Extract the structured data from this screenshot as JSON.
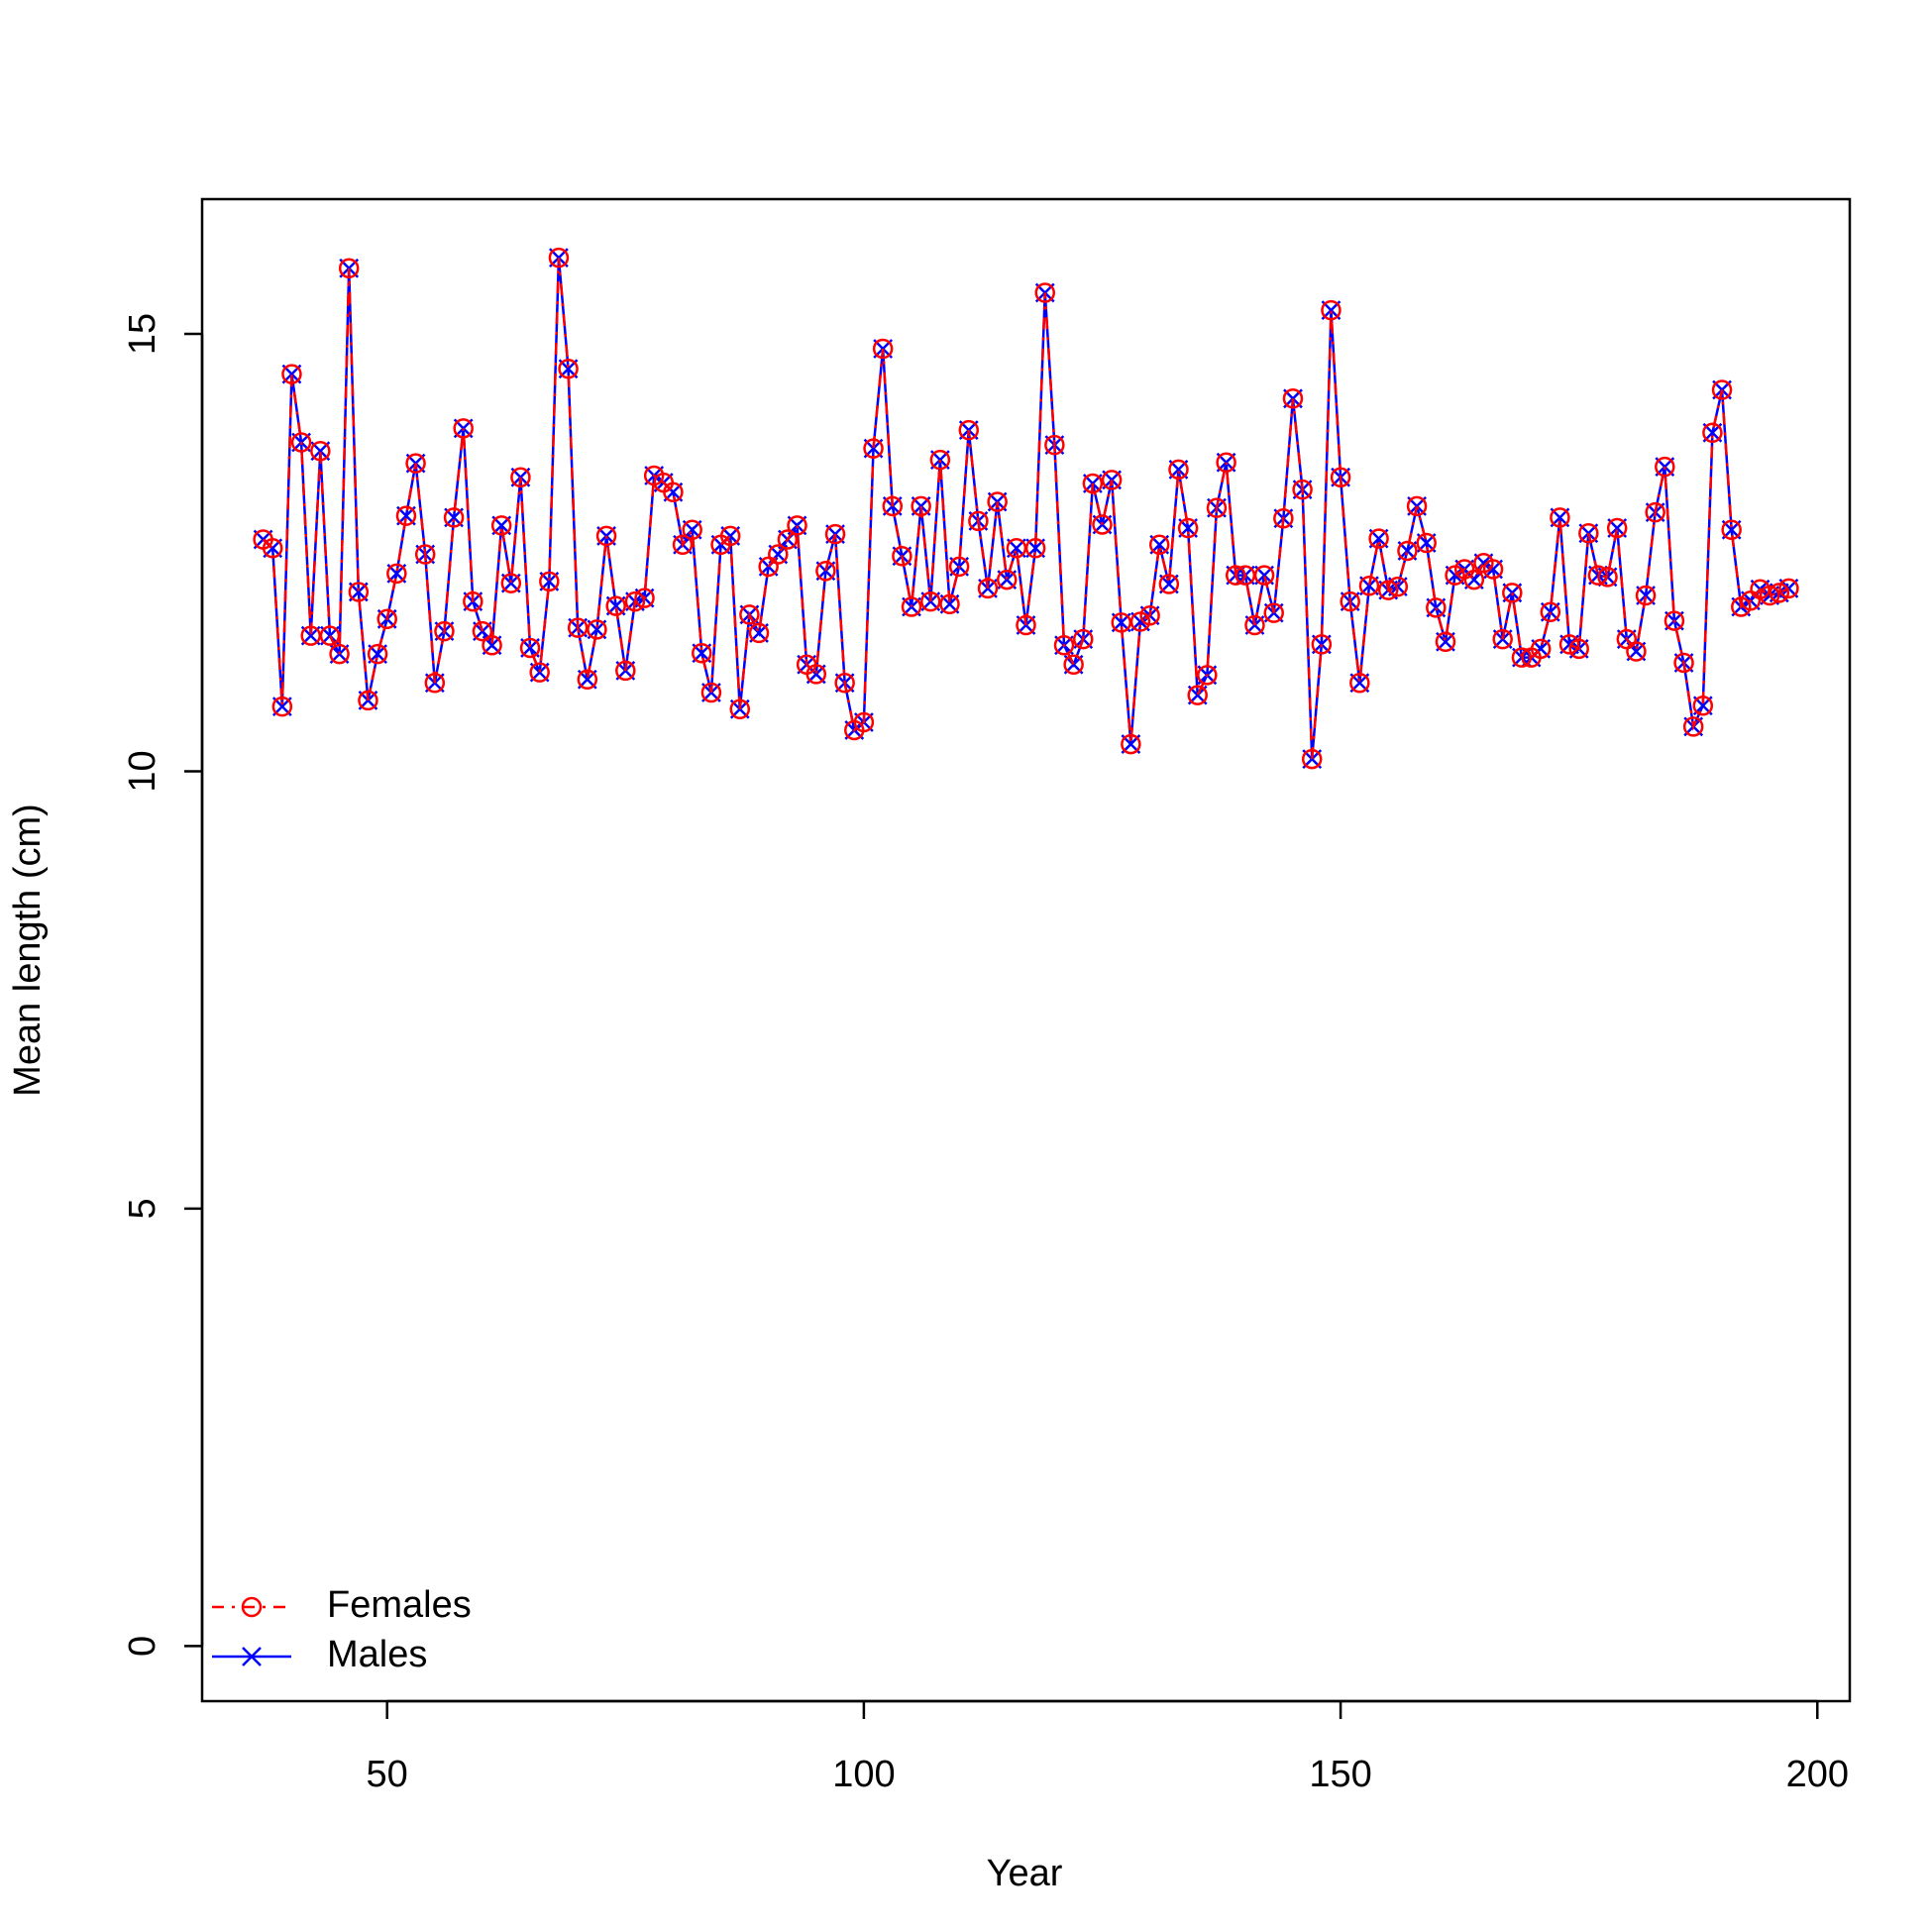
{
  "chart_data": {
    "type": "line",
    "xlabel": "Year",
    "ylabel": "Mean length (cm)",
    "x": [
      37,
      38,
      39,
      40,
      41,
      42,
      43,
      44,
      45,
      46,
      47,
      48,
      49,
      50,
      51,
      52,
      53,
      54,
      55,
      56,
      57,
      58,
      59,
      60,
      61,
      62,
      63,
      64,
      65,
      66,
      67,
      68,
      69,
      70,
      71,
      72,
      73,
      74,
      75,
      76,
      77,
      78,
      79,
      80,
      81,
      82,
      83,
      84,
      85,
      86,
      87,
      88,
      89,
      90,
      91,
      92,
      93,
      94,
      95,
      96,
      97,
      98,
      99,
      100,
      101,
      102,
      103,
      104,
      105,
      106,
      107,
      108,
      109,
      110,
      111,
      112,
      113,
      114,
      115,
      116,
      117,
      118,
      119,
      120,
      121,
      122,
      123,
      124,
      125,
      126,
      127,
      128,
      129,
      130,
      131,
      132,
      133,
      134,
      135,
      136,
      137,
      138,
      139,
      140,
      141,
      142,
      143,
      144,
      145,
      146,
      147,
      148,
      149,
      150,
      151,
      152,
      153,
      154,
      155,
      156,
      157,
      158,
      159,
      160,
      161,
      162,
      163,
      164,
      165,
      166,
      167,
      168,
      169,
      170,
      171,
      172,
      173,
      174,
      175,
      176,
      177,
      178,
      179,
      180,
      181,
      182,
      183,
      184,
      185,
      186,
      187,
      188,
      189,
      190,
      191,
      192,
      193,
      194,
      195,
      196,
      197
    ],
    "series": [
      {
        "name": "Females",
        "color": "#ff0000",
        "dash": true,
        "marker": "circle",
        "values": [
          12.65,
          12.55,
          10.74,
          14.54,
          13.76,
          11.55,
          13.66,
          11.55,
          11.34,
          15.75,
          12.05,
          10.81,
          11.34,
          11.74,
          12.26,
          12.92,
          13.52,
          12.48,
          11.01,
          11.6,
          12.9,
          13.92,
          11.94,
          11.6,
          11.44,
          12.81,
          12.15,
          13.36,
          11.41,
          11.13,
          12.17,
          15.87,
          14.6,
          11.64,
          11.05,
          11.62,
          12.69,
          11.89,
          11.15,
          11.94,
          11.98,
          13.38,
          13.3,
          13.19,
          12.59,
          12.76,
          11.35,
          10.9,
          12.59,
          12.69,
          10.71,
          11.79,
          11.58,
          12.34,
          12.48,
          12.65,
          12.81,
          11.22,
          11.11,
          12.29,
          12.71,
          11.01,
          10.47,
          10.56,
          13.69,
          14.83,
          13.03,
          12.46,
          11.88,
          13.03,
          11.94,
          13.56,
          11.91,
          12.34,
          13.9,
          12.86,
          12.09,
          13.08,
          12.19,
          12.55,
          11.67,
          12.55,
          15.47,
          13.73,
          11.44,
          11.22,
          11.51,
          13.29,
          12.82,
          13.33,
          11.7,
          10.31,
          11.71,
          11.78,
          12.59,
          12.14,
          13.45,
          12.78,
          10.87,
          11.1,
          13.01,
          13.53,
          12.24,
          12.24,
          11.67,
          12.24,
          11.81,
          12.89,
          14.26,
          13.22,
          10.14,
          11.45,
          15.27,
          13.36,
          11.94,
          11.01,
          12.12,
          12.66,
          12.07,
          12.11,
          12.52,
          13.03,
          12.61,
          11.87,
          11.48,
          12.24,
          12.31,
          12.19,
          12.38,
          12.31,
          11.51,
          12.04,
          11.3,
          11.3,
          11.4,
          11.82,
          12.9,
          11.45,
          11.4,
          12.72,
          12.24,
          12.22,
          12.78,
          11.51,
          11.37,
          12.01,
          12.96,
          13.48,
          11.72,
          11.24,
          10.51,
          10.75,
          13.87,
          14.36,
          12.76,
          11.88,
          11.95,
          12.08,
          12.01,
          12.04,
          12.09
        ]
      },
      {
        "name": "Males",
        "color": "#0000ff",
        "dash": false,
        "marker": "cross",
        "values": [
          12.65,
          12.55,
          10.74,
          14.54,
          13.76,
          11.55,
          13.66,
          11.55,
          11.34,
          15.75,
          12.05,
          10.81,
          11.34,
          11.74,
          12.26,
          12.92,
          13.52,
          12.48,
          11.01,
          11.6,
          12.9,
          13.92,
          11.94,
          11.6,
          11.44,
          12.81,
          12.15,
          13.36,
          11.41,
          11.13,
          12.17,
          15.87,
          14.6,
          11.64,
          11.05,
          11.62,
          12.69,
          11.89,
          11.15,
          11.94,
          11.98,
          13.38,
          13.3,
          13.19,
          12.59,
          12.76,
          11.35,
          10.9,
          12.59,
          12.69,
          10.71,
          11.79,
          11.58,
          12.34,
          12.48,
          12.65,
          12.81,
          11.22,
          11.11,
          12.29,
          12.71,
          11.01,
          10.47,
          10.56,
          13.69,
          14.83,
          13.03,
          12.46,
          11.88,
          13.03,
          11.94,
          13.56,
          11.91,
          12.34,
          13.9,
          12.86,
          12.09,
          13.08,
          12.19,
          12.55,
          11.67,
          12.55,
          15.47,
          13.73,
          11.44,
          11.22,
          11.51,
          13.29,
          12.82,
          13.33,
          11.7,
          10.31,
          11.71,
          11.78,
          12.59,
          12.14,
          13.45,
          12.78,
          10.87,
          11.1,
          13.01,
          13.53,
          12.24,
          12.24,
          11.67,
          12.24,
          11.81,
          12.89,
          14.26,
          13.22,
          10.14,
          11.45,
          15.27,
          13.36,
          11.94,
          11.01,
          12.12,
          12.66,
          12.07,
          12.11,
          12.52,
          13.03,
          12.61,
          11.87,
          11.48,
          12.24,
          12.31,
          12.19,
          12.38,
          12.31,
          11.51,
          12.04,
          11.3,
          11.3,
          11.4,
          11.82,
          12.9,
          11.45,
          11.4,
          12.72,
          12.24,
          12.22,
          12.78,
          11.51,
          11.37,
          12.01,
          12.96,
          13.48,
          11.72,
          11.24,
          10.51,
          10.75,
          13.87,
          14.36,
          12.76,
          11.88,
          11.95,
          12.08,
          12.01,
          12.04,
          12.09
        ]
      }
    ],
    "xlim": [
      30.6,
      203.4
    ],
    "xticks": [
      50,
      100,
      150,
      200
    ],
    "ylim": [
      -0.63,
      16.54
    ],
    "yticks": [
      0,
      5,
      10,
      15
    ],
    "legend": "bottomleft"
  }
}
